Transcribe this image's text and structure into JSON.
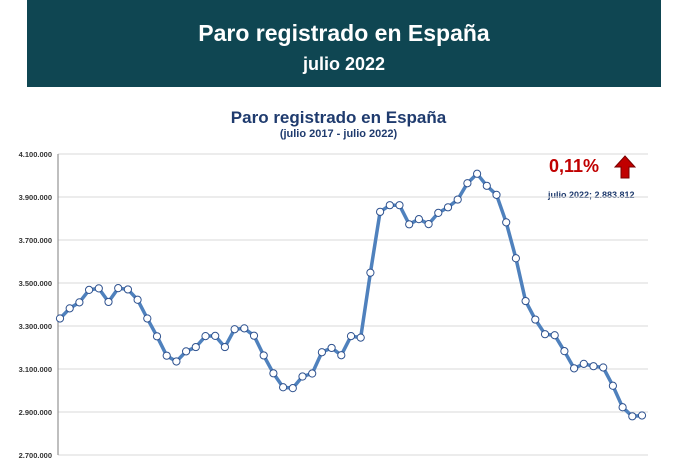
{
  "banner": {
    "title": "Paro registrado en España",
    "subtitle": "julio 2022",
    "bg_color": "#0f4652"
  },
  "annotation": {
    "change_percent": "0,11%",
    "change_direction": "up",
    "arrow_icon": "red-up-arrow-icon",
    "latest_label": "julio 2022; 2.883.812"
  },
  "chart_data": {
    "type": "line",
    "title": "Paro registrado en España",
    "subtitle": "(julio 2017 - julio 2022)",
    "xlabel": "",
    "ylabel": "",
    "ylim": [
      2700000,
      4100000
    ],
    "y_ticks": [
      2700000,
      2900000,
      3100000,
      3300000,
      3500000,
      3700000,
      3900000,
      4100000
    ],
    "y_tick_labels": [
      "2.700.000",
      "2.900.000",
      "3.100.000",
      "3.300.000",
      "3.500.000",
      "3.700.000",
      "3.900.000",
      "4.100.000"
    ],
    "grid": true,
    "line_color": "#4f81bd",
    "x_range": [
      "julio 2017",
      "julio 2022"
    ],
    "series": [
      {
        "values": [
          3335000,
          3382000,
          3410000,
          3468000,
          3475000,
          3412000,
          3476000,
          3470000,
          3422000,
          3335000,
          3252000,
          3162000,
          3135000,
          3182000,
          3202000,
          3253000,
          3254000,
          3202000,
          3285000,
          3289000,
          3255000,
          3163000,
          3080000,
          3015000,
          3011000,
          3065000,
          3079000,
          3178000,
          3198000,
          3164000,
          3253000,
          3246000,
          3548000,
          3831000,
          3862000,
          3862000,
          3773000,
          3797000,
          3774000,
          3826000,
          3852000,
          3888000,
          3964000,
          4008000,
          3952000,
          3910000,
          3782000,
          3615000,
          3416000,
          3330000,
          3262000,
          3257000,
          3183000,
          3103000,
          3124000,
          3113000,
          3107000,
          3022000,
          2922000,
          2880000,
          2883812
        ]
      }
    ]
  }
}
